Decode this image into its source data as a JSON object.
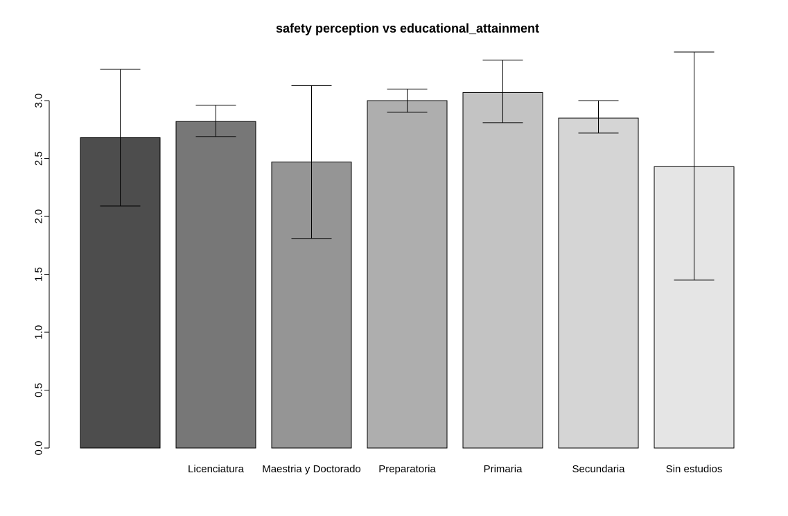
{
  "chart_data": {
    "type": "bar",
    "title": "safety perception vs educational_attainment",
    "xlabel": "",
    "ylabel": "",
    "ylim": [
      0,
      3.45
    ],
    "yticks": [
      0.0,
      0.5,
      1.0,
      1.5,
      2.0,
      2.5,
      3.0
    ],
    "ytick_labels": [
      "0.0",
      "0.5",
      "1.0",
      "1.5",
      "2.0",
      "2.5",
      "3.0"
    ],
    "grid": false,
    "categories": [
      "",
      "Licenciatura",
      "Maestria y Doctorado",
      "Preparatoria",
      "Primaria",
      "Secundaria",
      "Sin estudios"
    ],
    "values": [
      2.68,
      2.82,
      2.47,
      3.0,
      3.07,
      2.85,
      2.43
    ],
    "error_low": [
      2.09,
      2.69,
      1.81,
      2.9,
      2.81,
      2.72,
      1.45
    ],
    "error_high": [
      3.27,
      2.96,
      3.13,
      3.1,
      3.35,
      3.0,
      3.42
    ],
    "colors": [
      "#4d4d4d",
      "#777777",
      "#959595",
      "#aeaeae",
      "#c3c3c3",
      "#d5d5d5",
      "#e5e5e5"
    ]
  }
}
